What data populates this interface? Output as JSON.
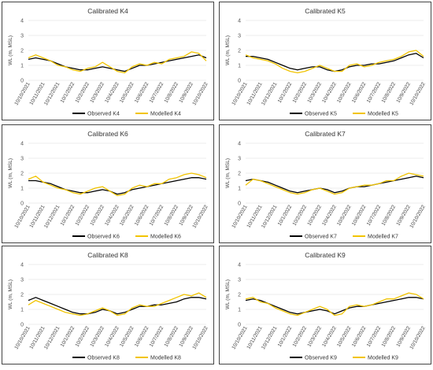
{
  "chart_data": [
    {
      "type": "line",
      "title": "Calibrated K4",
      "ylabel": "WL (m, MSL)",
      "ylim": [
        0,
        4
      ],
      "yticks": [
        0,
        1,
        2,
        3,
        4
      ],
      "grid": true,
      "legend": "bottom",
      "categories": [
        "10/10/2021",
        null,
        "10/11/2021",
        null,
        "10/12/2021",
        null,
        "10/1/2022",
        null,
        "10/2/2022",
        null,
        "10/3/2022",
        null,
        "10/4/2022",
        null,
        "10/5/2022",
        null,
        "10/6/2022",
        null,
        "10/7/2022",
        null,
        "10/8/2022",
        null,
        "10/9/2022",
        null,
        "10/10/2022"
      ],
      "series": [
        {
          "name": "Observed K4",
          "color": "#000000",
          "values": [
            1.4,
            1.5,
            1.4,
            1.3,
            1.1,
            0.9,
            0.8,
            0.7,
            0.7,
            0.8,
            0.9,
            0.8,
            0.7,
            0.6,
            0.8,
            1.0,
            1.0,
            1.1,
            1.2,
            1.3,
            1.4,
            1.5,
            1.6,
            1.7,
            1.5
          ]
        },
        {
          "name": "Modelled K4",
          "color": "#f2c400",
          "values": [
            1.5,
            1.7,
            1.5,
            1.3,
            1.0,
            0.9,
            0.7,
            0.6,
            0.8,
            0.9,
            1.2,
            0.9,
            0.6,
            0.5,
            0.9,
            1.1,
            1.0,
            1.2,
            1.1,
            1.4,
            1.5,
            1.6,
            1.9,
            1.8,
            1.3
          ]
        }
      ]
    },
    {
      "type": "line",
      "title": "Calibrated K5",
      "ylabel": "WL (m, MSL)",
      "ylim": [
        0,
        4
      ],
      "yticks": [
        0,
        1,
        2,
        3,
        4
      ],
      "grid": true,
      "legend": "bottom",
      "categories": [
        "10/10/2021",
        null,
        "10/11/2021",
        null,
        "10/12/2021",
        null,
        "10/1/2022",
        null,
        "10/2/2022",
        null,
        "10/3/2022",
        null,
        "10/4/2022",
        null,
        "10/5/2022",
        null,
        "10/6/2022",
        null,
        "10/7/2022",
        null,
        "10/8/2022",
        null,
        "10/9/2022",
        null,
        "10/10/2022"
      ],
      "series": [
        {
          "name": "Observed K5",
          "color": "#000000",
          "values": [
            1.6,
            1.6,
            1.5,
            1.4,
            1.2,
            1.0,
            0.8,
            0.7,
            0.8,
            0.9,
            0.9,
            0.7,
            0.6,
            0.7,
            0.9,
            1.0,
            1.0,
            1.1,
            1.1,
            1.2,
            1.3,
            1.5,
            1.7,
            1.8,
            1.5
          ]
        },
        {
          "name": "Modelled K5",
          "color": "#f2c400",
          "values": [
            1.7,
            1.5,
            1.4,
            1.3,
            1.1,
            0.8,
            0.6,
            0.5,
            0.6,
            0.8,
            1.0,
            0.8,
            0.6,
            0.6,
            1.0,
            1.1,
            0.9,
            1.0,
            1.2,
            1.3,
            1.4,
            1.6,
            1.9,
            2.0,
            1.6
          ]
        }
      ]
    },
    {
      "type": "line",
      "title": "Calibrated K6",
      "ylabel": "WL (m, MSL)",
      "ylim": [
        0,
        4
      ],
      "yticks": [
        0,
        1,
        2,
        3,
        4
      ],
      "grid": true,
      "legend": "bottom",
      "categories": [
        "10/10/2021",
        null,
        "10/11/2021",
        null,
        "10/12/2021",
        null,
        "10/1/2022",
        null,
        "10/2/2022",
        null,
        "10/3/2022",
        null,
        "10/4/2022",
        null,
        "10/5/2022",
        null,
        "10/6/2022",
        null,
        "10/7/2022",
        null,
        "10/8/2022",
        null,
        "10/9/2022",
        null,
        "10/10/2022"
      ],
      "series": [
        {
          "name": "Observed K6",
          "color": "#000000",
          "values": [
            1.5,
            1.5,
            1.4,
            1.3,
            1.1,
            0.9,
            0.8,
            0.7,
            0.7,
            0.8,
            0.9,
            0.8,
            0.6,
            0.7,
            0.9,
            1.0,
            1.1,
            1.2,
            1.3,
            1.4,
            1.5,
            1.6,
            1.7,
            1.7,
            1.6
          ]
        },
        {
          "name": "Modelled K6",
          "color": "#f2c400",
          "values": [
            1.6,
            1.8,
            1.4,
            1.2,
            1.0,
            0.9,
            0.7,
            0.6,
            0.8,
            1.0,
            1.1,
            0.8,
            0.5,
            0.6,
            1.0,
            1.2,
            1.1,
            1.3,
            1.3,
            1.6,
            1.7,
            1.9,
            2.0,
            1.9,
            1.7
          ]
        }
      ]
    },
    {
      "type": "line",
      "title": "Calibrated K7",
      "ylabel": "WL (m, MSL)",
      "ylim": [
        0,
        4
      ],
      "yticks": [
        0,
        1,
        2,
        3,
        4
      ],
      "grid": true,
      "legend": "bottom",
      "categories": [
        "10/10/2021",
        null,
        "10/11/2021",
        null,
        "10/12/2021",
        null,
        "10/1/2022",
        null,
        "10/2/2022",
        null,
        "10/3/2022",
        null,
        "10/4/2022",
        null,
        "10/5/2022",
        null,
        "10/6/2022",
        null,
        "10/7/2022",
        null,
        "10/8/2022",
        null,
        "10/9/2022",
        null,
        "10/10/2022"
      ],
      "series": [
        {
          "name": "Observed K7",
          "color": "#000000",
          "values": [
            1.5,
            1.6,
            1.5,
            1.4,
            1.2,
            1.0,
            0.8,
            0.7,
            0.8,
            0.9,
            1.0,
            0.9,
            0.7,
            0.8,
            1.0,
            1.1,
            1.1,
            1.2,
            1.3,
            1.4,
            1.5,
            1.6,
            1.7,
            1.8,
            1.7
          ]
        },
        {
          "name": "Modelled K7",
          "color": "#f2c400",
          "values": [
            1.2,
            1.6,
            1.5,
            1.3,
            1.1,
            0.9,
            0.7,
            0.6,
            0.7,
            0.9,
            1.0,
            0.8,
            0.6,
            0.7,
            1.0,
            1.1,
            1.2,
            1.2,
            1.3,
            1.5,
            1.5,
            1.8,
            2.0,
            1.9,
            1.8
          ]
        }
      ]
    },
    {
      "type": "line",
      "title": "Calibrated K8",
      "ylabel": "WL (m, MSL)",
      "ylim": [
        0,
        4
      ],
      "yticks": [
        0,
        1,
        2,
        3,
        4
      ],
      "grid": true,
      "legend": "bottom",
      "categories": [
        "10/10/2021",
        null,
        "10/11/2021",
        null,
        "10/12/2021",
        null,
        "10/1/2022",
        null,
        "10/2/2022",
        null,
        "10/3/2022",
        null,
        "10/4/2022",
        null,
        "10/5/2022",
        null,
        "10/6/2022",
        null,
        "10/7/2022",
        null,
        "10/8/2022",
        null,
        "10/9/2022",
        null,
        "10/10/2022"
      ],
      "series": [
        {
          "name": "Observed K8",
          "color": "#000000",
          "values": [
            1.6,
            1.8,
            1.6,
            1.4,
            1.2,
            1.0,
            0.8,
            0.7,
            0.7,
            0.8,
            1.0,
            0.9,
            0.7,
            0.8,
            1.0,
            1.2,
            1.2,
            1.3,
            1.3,
            1.4,
            1.5,
            1.7,
            1.8,
            1.8,
            1.7
          ]
        },
        {
          "name": "Modelled K8",
          "color": "#f2c400",
          "values": [
            1.3,
            1.6,
            1.4,
            1.2,
            1.0,
            0.8,
            0.7,
            0.6,
            0.7,
            0.9,
            1.1,
            0.9,
            0.6,
            0.7,
            1.1,
            1.3,
            1.2,
            1.2,
            1.4,
            1.6,
            1.8,
            2.0,
            1.9,
            2.1,
            1.8
          ]
        }
      ]
    },
    {
      "type": "line",
      "title": "Calibrated K9",
      "ylabel": "WL (m, MSL)",
      "ylim": [
        0,
        4
      ],
      "yticks": [
        0,
        1,
        2,
        3,
        4
      ],
      "grid": true,
      "legend": "bottom",
      "categories": [
        "10/10/2021",
        null,
        "10/11/2021",
        null,
        "10/12/2021",
        null,
        "10/1/2022",
        null,
        "10/2/2022",
        null,
        "10/3/2022",
        null,
        "10/4/2022",
        null,
        "10/5/2022",
        null,
        "10/6/2022",
        null,
        "10/7/2022",
        null,
        "10/8/2022",
        null,
        "10/9/2022",
        null,
        "10/10/2022"
      ],
      "series": [
        {
          "name": "Observed K9",
          "color": "#000000",
          "values": [
            1.6,
            1.7,
            1.6,
            1.4,
            1.2,
            1.0,
            0.8,
            0.7,
            0.8,
            0.9,
            1.0,
            0.9,
            0.7,
            0.9,
            1.1,
            1.2,
            1.2,
            1.3,
            1.4,
            1.5,
            1.6,
            1.7,
            1.8,
            1.8,
            1.7
          ]
        },
        {
          "name": "Modelled K9",
          "color": "#f2c400",
          "values": [
            1.7,
            1.8,
            1.5,
            1.4,
            1.1,
            0.9,
            0.7,
            0.6,
            0.8,
            1.0,
            1.2,
            1.0,
            0.6,
            0.7,
            1.2,
            1.3,
            1.2,
            1.3,
            1.5,
            1.7,
            1.7,
            1.9,
            2.1,
            2.0,
            1.7
          ]
        }
      ]
    }
  ]
}
